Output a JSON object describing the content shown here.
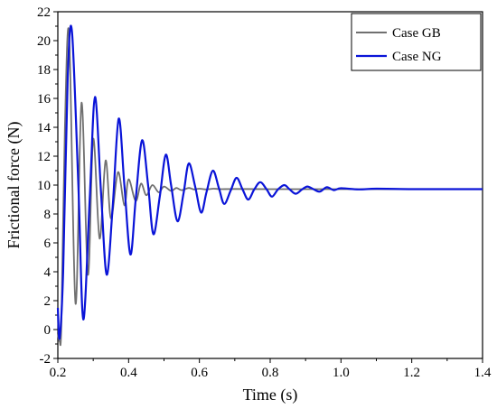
{
  "chart_data": {
    "type": "line",
    "title": "",
    "xlabel": "Time (s)",
    "ylabel": "Frictional force (N)",
    "xlim": [
      0.2,
      1.4
    ],
    "ylim": [
      -2,
      22
    ],
    "xticks": [
      "0.2",
      "0.4",
      "0.6",
      "0.8",
      "1.0",
      "1.2",
      "1.4"
    ],
    "xtick_values": [
      0.2,
      0.4,
      0.6,
      0.8,
      1.0,
      1.2,
      1.4
    ],
    "yticks": [
      "-2",
      "0",
      "2",
      "4",
      "6",
      "8",
      "10",
      "12",
      "14",
      "16",
      "18",
      "20",
      "22"
    ],
    "ytick_values": [
      -2,
      0,
      2,
      4,
      6,
      8,
      10,
      12,
      14,
      16,
      18,
      20,
      22
    ],
    "grid": false,
    "legend": "top-right",
    "series": [
      {
        "name": "Case GB",
        "color": "#707070",
        "x": [
          0.2,
          0.205,
          0.21,
          0.22,
          0.232,
          0.25,
          0.267,
          0.285,
          0.3,
          0.318,
          0.335,
          0.35,
          0.37,
          0.388,
          0.4,
          0.42,
          0.435,
          0.45,
          0.467,
          0.485,
          0.5,
          0.52,
          0.535,
          0.55,
          0.57,
          0.585,
          0.6,
          0.62,
          0.64,
          0.66,
          0.7,
          0.8,
          0.9,
          1.0,
          1.1,
          1.2,
          1.3,
          1.4
        ],
        "values": [
          -0.3,
          -0.8,
          0.4,
          14.0,
          20.4,
          1.8,
          15.7,
          3.8,
          13.2,
          6.3,
          11.7,
          7.7,
          10.9,
          8.6,
          10.4,
          8.9,
          10.1,
          9.3,
          10.0,
          9.5,
          9.9,
          9.6,
          9.8,
          9.65,
          9.8,
          9.7,
          9.75,
          9.7,
          9.75,
          9.72,
          9.73,
          9.72,
          9.72,
          9.72,
          9.72,
          9.72,
          9.72,
          9.72
        ]
      },
      {
        "name": "Case NG",
        "color": "#0a14d8",
        "x": [
          0.2,
          0.205,
          0.215,
          0.228,
          0.24,
          0.258,
          0.272,
          0.29,
          0.305,
          0.322,
          0.338,
          0.355,
          0.372,
          0.388,
          0.405,
          0.42,
          0.438,
          0.455,
          0.47,
          0.488,
          0.505,
          0.52,
          0.538,
          0.555,
          0.57,
          0.588,
          0.605,
          0.62,
          0.638,
          0.655,
          0.67,
          0.688,
          0.705,
          0.722,
          0.738,
          0.755,
          0.772,
          0.79,
          0.805,
          0.822,
          0.84,
          0.855,
          0.872,
          0.89,
          0.905,
          0.922,
          0.94,
          0.96,
          0.98,
          1.0,
          1.05,
          1.1,
          1.2,
          1.3,
          1.4
        ],
        "values": [
          1.5,
          -0.6,
          4.0,
          17.5,
          20.6,
          10.0,
          0.7,
          9.0,
          16.1,
          9.5,
          3.8,
          8.5,
          14.6,
          10.0,
          5.2,
          9.0,
          13.1,
          10.0,
          6.6,
          9.2,
          12.1,
          10.0,
          7.5,
          9.4,
          11.5,
          9.9,
          8.1,
          9.5,
          11.0,
          9.8,
          8.7,
          9.6,
          10.5,
          9.7,
          9.0,
          9.7,
          10.2,
          9.7,
          9.2,
          9.7,
          10.0,
          9.7,
          9.4,
          9.7,
          9.9,
          9.72,
          9.55,
          9.85,
          9.65,
          9.78,
          9.7,
          9.75,
          9.72,
          9.72,
          9.72
        ]
      }
    ]
  }
}
